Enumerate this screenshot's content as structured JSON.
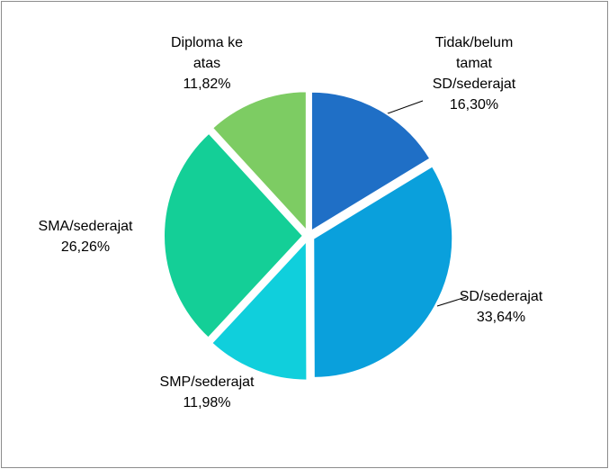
{
  "chart_data": {
    "type": "pie",
    "categories": [
      "Tidak/belum tamat SD/sederajat",
      "SD/sederajat",
      "SMP/sederajat",
      "SMA/sederajat",
      "Diploma ke atas"
    ],
    "values": [
      16.3,
      33.64,
      11.98,
      26.26,
      11.82
    ],
    "value_labels": [
      "16,30%",
      "33,64%",
      "11,98%",
      "26,26%",
      "11,82%"
    ],
    "colors": [
      "#1f6fc6",
      "#0aa0dc",
      "#10cfdc",
      "#14cf97",
      "#7dcc63"
    ]
  }
}
